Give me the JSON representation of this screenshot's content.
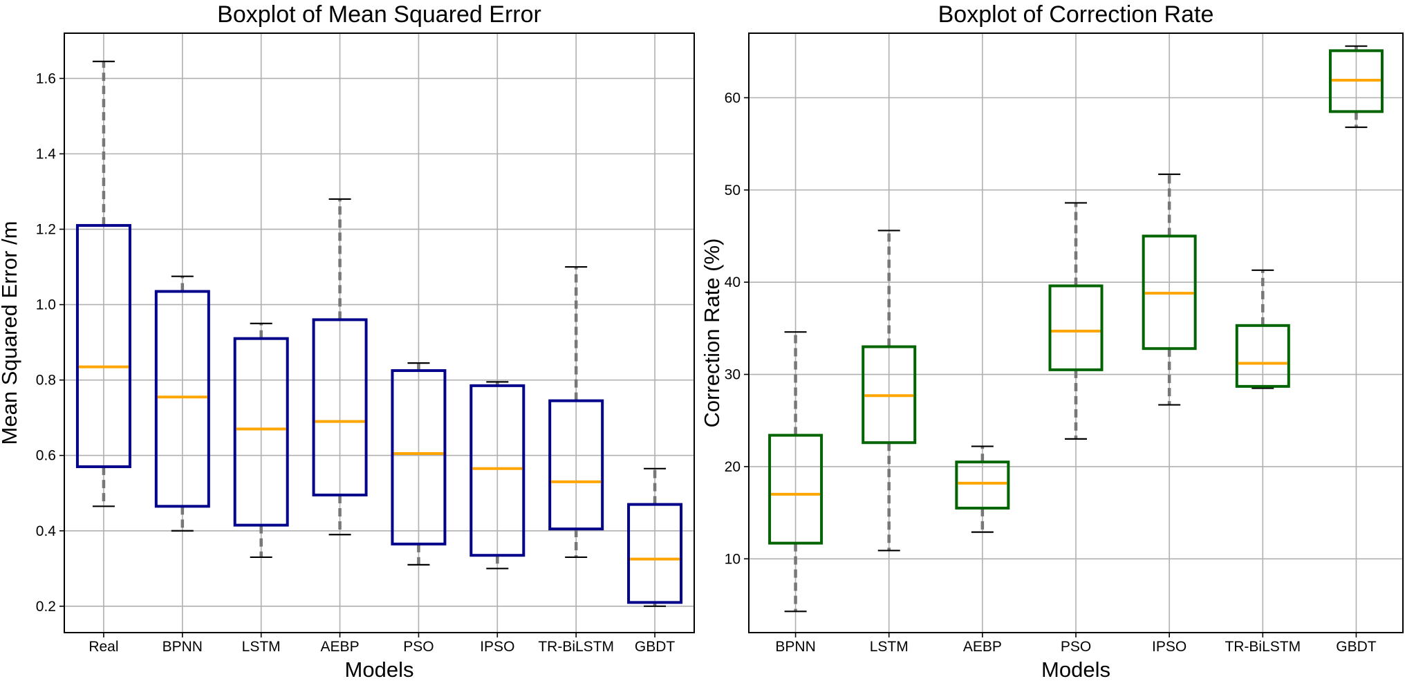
{
  "chart_data": [
    {
      "type": "boxplot",
      "title": "Boxplot of Mean Squared Error",
      "xlabel": "Models",
      "ylabel": "Mean Squared Error /m",
      "ylim": [
        0.13,
        1.72
      ],
      "yticks": [
        0.2,
        0.4,
        0.6,
        0.8,
        1.0,
        1.2,
        1.4,
        1.6
      ],
      "ytick_labels": [
        "0.2",
        "0.4",
        "0.6",
        "0.8",
        "1.0",
        "1.2",
        "1.4",
        "1.6"
      ],
      "grid": true,
      "box_color": "#00008B",
      "median_color": "#FFA500",
      "whisker_color": "#777777",
      "categories": [
        "Real",
        "BPNN",
        "LSTM",
        "AEBP",
        "PSO",
        "IPSO",
        "TR-BiLSTM",
        "GBDT"
      ],
      "series": [
        {
          "name": "Real",
          "min": 0.465,
          "q1": 0.57,
          "median": 0.835,
          "q3": 1.21,
          "max": 1.645
        },
        {
          "name": "BPNN",
          "min": 0.4,
          "q1": 0.465,
          "median": 0.755,
          "q3": 1.035,
          "max": 1.075
        },
        {
          "name": "LSTM",
          "min": 0.33,
          "q1": 0.415,
          "median": 0.67,
          "q3": 0.91,
          "max": 0.95
        },
        {
          "name": "AEBP",
          "min": 0.39,
          "q1": 0.495,
          "median": 0.69,
          "q3": 0.96,
          "max": 1.28
        },
        {
          "name": "PSO",
          "min": 0.31,
          "q1": 0.365,
          "median": 0.605,
          "q3": 0.825,
          "max": 0.845
        },
        {
          "name": "IPSO",
          "min": 0.3,
          "q1": 0.335,
          "median": 0.565,
          "q3": 0.785,
          "max": 0.795
        },
        {
          "name": "TR-BiLSTM",
          "min": 0.33,
          "q1": 0.405,
          "median": 0.53,
          "q3": 0.745,
          "max": 1.1
        },
        {
          "name": "GBDT",
          "min": 0.2,
          "q1": 0.21,
          "median": 0.325,
          "q3": 0.47,
          "max": 0.565
        }
      ]
    },
    {
      "type": "boxplot",
      "title": "Boxplot of Correction Rate",
      "xlabel": "Models",
      "ylabel": "Correction Rate (%)",
      "ylim": [
        2.0,
        67.0
      ],
      "yticks": [
        10,
        20,
        30,
        40,
        50,
        60
      ],
      "ytick_labels": [
        "10",
        "20",
        "30",
        "40",
        "50",
        "60"
      ],
      "grid": true,
      "box_color": "#006400",
      "median_color": "#FFA500",
      "whisker_color": "#777777",
      "categories": [
        "BPNN",
        "LSTM",
        "AEBP",
        "PSO",
        "IPSO",
        "TR-BiLSTM",
        "GBDT"
      ],
      "series": [
        {
          "name": "BPNN",
          "min": 4.3,
          "q1": 11.7,
          "median": 17.0,
          "q3": 23.4,
          "max": 34.6
        },
        {
          "name": "LSTM",
          "min": 10.9,
          "q1": 22.6,
          "median": 27.7,
          "q3": 33.0,
          "max": 45.6
        },
        {
          "name": "AEBP",
          "min": 12.9,
          "q1": 15.5,
          "median": 18.2,
          "q3": 20.5,
          "max": 22.2
        },
        {
          "name": "PSO",
          "min": 23.0,
          "q1": 30.5,
          "median": 34.7,
          "q3": 39.6,
          "max": 48.6
        },
        {
          "name": "IPSO",
          "min": 26.7,
          "q1": 32.8,
          "median": 38.8,
          "q3": 45.0,
          "max": 51.7
        },
        {
          "name": "TR-BiLSTM",
          "min": 28.5,
          "q1": 28.7,
          "median": 31.2,
          "q3": 35.3,
          "max": 41.3
        },
        {
          "name": "GBDT",
          "min": 56.8,
          "q1": 58.5,
          "median": 61.9,
          "q3": 65.1,
          "max": 65.6
        }
      ]
    }
  ]
}
